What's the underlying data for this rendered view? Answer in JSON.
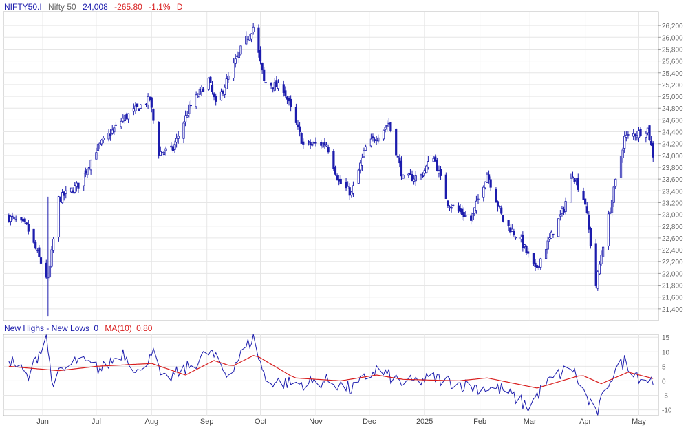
{
  "header": {
    "symbol": "NIFTY50.I",
    "name": "Nifty 50",
    "last": "24,008",
    "change": "-265.80",
    "change_pct": "-1.1%",
    "period": "D"
  },
  "indicator_header": {
    "name": "New Highs - New Lows",
    "value": "0",
    "ma_label": "MA(10)",
    "ma_value": "0.80"
  },
  "colors": {
    "candle": "#1c1cad",
    "line": "#1c1cad",
    "ma": "#d81e1e",
    "grid": "#e6e6e6",
    "axis_text": "#666666"
  },
  "chart_data": [
    {
      "type": "candlestick",
      "title": "NIFTY50.I",
      "ylim": [
        21200,
        26400
      ],
      "y_ticks": [
        "21,400",
        "21,600",
        "21,800",
        "22,000",
        "22,200",
        "22,400",
        "22,600",
        "22,800",
        "23,000",
        "23,200",
        "23,400",
        "23,600",
        "23,800",
        "24,000",
        "24,200",
        "24,400",
        "24,600",
        "24,800",
        "25,000",
        "25,200",
        "25,400",
        "25,600",
        "25,800",
        "26,000",
        "26,200"
      ],
      "y_tick_values": [
        21400,
        21600,
        21800,
        22000,
        22200,
        22400,
        22600,
        22800,
        23000,
        23200,
        23400,
        23600,
        23800,
        24000,
        24200,
        24400,
        24600,
        24800,
        25000,
        25200,
        25400,
        25600,
        25800,
        26000,
        26200
      ],
      "x_tick_labels": [
        "Jun",
        "Jul",
        "Aug",
        "Sep",
        "Oct",
        "Nov",
        "Dec",
        "2025",
        "Feb",
        "Mar",
        "Apr",
        "May"
      ],
      "x_tick_dates": [
        "2024-06-01",
        "2024-07-01",
        "2024-08-01",
        "2024-09-01",
        "2024-10-01",
        "2024-11-01",
        "2024-12-01",
        "2025-01-01",
        "2025-02-01",
        "2025-03-01",
        "2025-04-01",
        "2025-05-01"
      ],
      "last_value": 24008,
      "series_anchors": [
        {
          "date": "2024-05-13",
          "close": 22950
        },
        {
          "date": "2024-05-23",
          "close": 22800
        },
        {
          "date": "2024-06-04",
          "close": 21880
        },
        {
          "date": "2024-06-10",
          "close": 23260
        },
        {
          "date": "2024-06-21",
          "close": 23500
        },
        {
          "date": "2024-07-01",
          "close": 24100
        },
        {
          "date": "2024-07-16",
          "close": 24620
        },
        {
          "date": "2024-07-31",
          "close": 24950
        },
        {
          "date": "2024-08-05",
          "close": 24050
        },
        {
          "date": "2024-08-13",
          "close": 24100
        },
        {
          "date": "2024-08-22",
          "close": 24800
        },
        {
          "date": "2024-09-02",
          "close": 25280
        },
        {
          "date": "2024-09-06",
          "close": 24850
        },
        {
          "date": "2024-09-20",
          "close": 25790
        },
        {
          "date": "2024-09-27",
          "close": 26180
        },
        {
          "date": "2024-10-03",
          "close": 25250
        },
        {
          "date": "2024-10-14",
          "close": 25130
        },
        {
          "date": "2024-10-25",
          "close": 24180
        },
        {
          "date": "2024-11-07",
          "close": 24200
        },
        {
          "date": "2024-11-14",
          "close": 23550
        },
        {
          "date": "2024-11-21",
          "close": 23350
        },
        {
          "date": "2024-11-29",
          "close": 24130
        },
        {
          "date": "2024-12-12",
          "close": 24550
        },
        {
          "date": "2024-12-20",
          "close": 23600
        },
        {
          "date": "2024-12-30",
          "close": 23650
        },
        {
          "date": "2025-01-06",
          "close": 24000
        },
        {
          "date": "2025-01-14",
          "close": 23200
        },
        {
          "date": "2025-01-27",
          "close": 22900
        },
        {
          "date": "2025-02-05",
          "close": 23700
        },
        {
          "date": "2025-02-14",
          "close": 22900
        },
        {
          "date": "2025-02-24",
          "close": 22550
        },
        {
          "date": "2025-03-04",
          "close": 22050
        },
        {
          "date": "2025-03-10",
          "close": 22450
        },
        {
          "date": "2025-03-20",
          "close": 23100
        },
        {
          "date": "2025-03-25",
          "close": 23700
        },
        {
          "date": "2025-04-01",
          "close": 23200
        },
        {
          "date": "2025-04-07",
          "close": 21800
        },
        {
          "date": "2025-04-11",
          "close": 22500
        },
        {
          "date": "2025-04-17",
          "close": 23400
        },
        {
          "date": "2025-04-23",
          "close": 24300
        },
        {
          "date": "2025-05-02",
          "close": 24400
        },
        {
          "date": "2025-05-06",
          "close": 24450
        },
        {
          "date": "2025-05-09",
          "close": 24008
        }
      ]
    },
    {
      "type": "line",
      "title": "New Highs - New Lows",
      "ylim": [
        -12,
        16
      ],
      "y_ticks": [
        "-10",
        "-5",
        "0",
        "5",
        "10",
        "15"
      ],
      "y_tick_values": [
        -10,
        -5,
        0,
        5,
        10,
        15
      ],
      "series": [
        {
          "name": "New Highs - New Lows",
          "color": "#1c1cad",
          "anchors": [
            {
              "date": "2024-05-13",
              "value": 8
            },
            {
              "date": "2024-05-24",
              "value": 1
            },
            {
              "date": "2024-06-03",
              "value": 16
            },
            {
              "date": "2024-06-06",
              "value": 0
            },
            {
              "date": "2024-06-20",
              "value": 7
            },
            {
              "date": "2024-07-04",
              "value": 4
            },
            {
              "date": "2024-07-16",
              "value": 10
            },
            {
              "date": "2024-07-26",
              "value": 2
            },
            {
              "date": "2024-08-01",
              "value": 11
            },
            {
              "date": "2024-08-07",
              "value": 0
            },
            {
              "date": "2024-08-20",
              "value": 4
            },
            {
              "date": "2024-09-03",
              "value": 10
            },
            {
              "date": "2024-09-12",
              "value": 2
            },
            {
              "date": "2024-09-27",
              "value": 15
            },
            {
              "date": "2024-10-04",
              "value": 0
            },
            {
              "date": "2024-10-22",
              "value": -1
            },
            {
              "date": "2024-11-08",
              "value": 0
            },
            {
              "date": "2024-11-21",
              "value": -3
            },
            {
              "date": "2024-12-05",
              "value": 4
            },
            {
              "date": "2024-12-20",
              "value": -1
            },
            {
              "date": "2025-01-07",
              "value": 1
            },
            {
              "date": "2025-01-27",
              "value": -2
            },
            {
              "date": "2025-02-14",
              "value": -3
            },
            {
              "date": "2025-02-28",
              "value": -9
            },
            {
              "date": "2025-03-10",
              "value": -1
            },
            {
              "date": "2025-03-24",
              "value": 5
            },
            {
              "date": "2025-04-07",
              "value": -12
            },
            {
              "date": "2025-04-15",
              "value": 1
            },
            {
              "date": "2025-04-23",
              "value": 7
            },
            {
              "date": "2025-05-02",
              "value": 1
            },
            {
              "date": "2025-05-09",
              "value": 0
            }
          ]
        },
        {
          "name": "MA(10)",
          "color": "#d81e1e",
          "anchors": [
            {
              "date": "2024-05-13",
              "value": 5
            },
            {
              "date": "2024-06-10",
              "value": 3.5
            },
            {
              "date": "2024-07-01",
              "value": 5
            },
            {
              "date": "2024-08-01",
              "value": 6
            },
            {
              "date": "2024-08-20",
              "value": 2
            },
            {
              "date": "2024-09-05",
              "value": 7
            },
            {
              "date": "2024-09-15",
              "value": 5
            },
            {
              "date": "2024-09-28",
              "value": 9
            },
            {
              "date": "2024-10-20",
              "value": 1
            },
            {
              "date": "2024-11-15",
              "value": 0
            },
            {
              "date": "2024-12-05",
              "value": 2
            },
            {
              "date": "2024-12-20",
              "value": 0.5
            },
            {
              "date": "2025-01-20",
              "value": 0
            },
            {
              "date": "2025-02-05",
              "value": 1
            },
            {
              "date": "2025-03-05",
              "value": -2.5
            },
            {
              "date": "2025-03-30",
              "value": 2
            },
            {
              "date": "2025-04-10",
              "value": -1
            },
            {
              "date": "2025-04-25",
              "value": 3
            },
            {
              "date": "2025-05-09",
              "value": 0.8
            }
          ]
        }
      ]
    }
  ]
}
